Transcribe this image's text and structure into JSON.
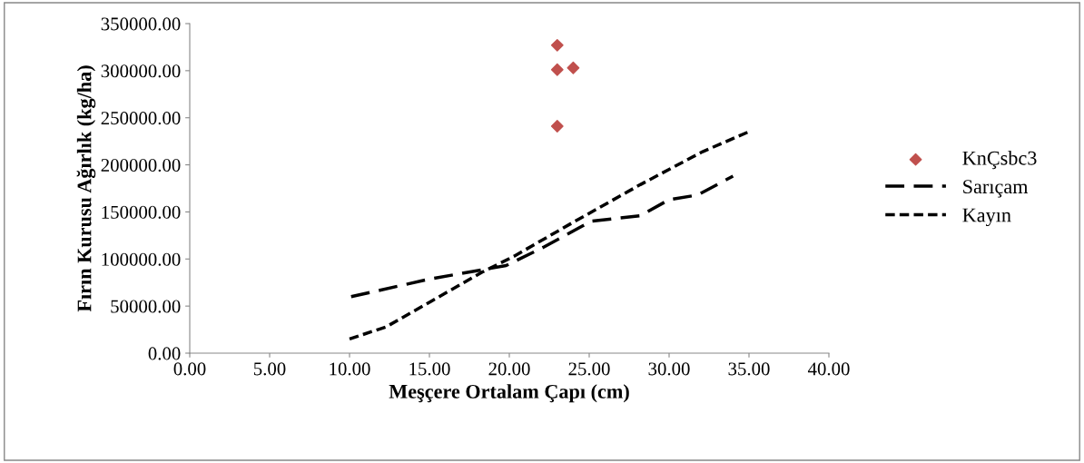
{
  "chart_data": {
    "type": "scatter",
    "xlabel": "Meşçere Ortalam Çapı (cm)",
    "ylabel": "Fırın Kurusu Ağırlık (kg/ha)",
    "xlim": [
      0,
      40
    ],
    "xticks": [
      {
        "value": 0,
        "label": "0.00"
      },
      {
        "value": 5,
        "label": "5.00"
      },
      {
        "value": 10,
        "label": "10.00"
      },
      {
        "value": 15,
        "label": "15.00"
      },
      {
        "value": 20,
        "label": "20.00"
      },
      {
        "value": 25,
        "label": "25.00"
      },
      {
        "value": 30,
        "label": "30.00"
      },
      {
        "value": 35,
        "label": "35.00"
      },
      {
        "value": 40,
        "label": "40.00"
      }
    ],
    "ylim": [
      0,
      350000
    ],
    "yticks": [
      {
        "value": 0,
        "label": "0.00"
      },
      {
        "value": 50000,
        "label": "50000.00"
      },
      {
        "value": 100000,
        "label": "100000.00"
      },
      {
        "value": 150000,
        "label": "150000.00"
      },
      {
        "value": 200000,
        "label": "200000.00"
      },
      {
        "value": 250000,
        "label": "250000.00"
      },
      {
        "value": 300000,
        "label": "300000.00"
      },
      {
        "value": 350000,
        "label": "350000.00"
      }
    ],
    "grid": false,
    "legend": "right",
    "series": [
      {
        "name": "KnÇsbc3",
        "marker": "diamond",
        "color": "#c0504d",
        "x": [
          23,
          23,
          24,
          23
        ],
        "values": [
          327000,
          301000,
          303000,
          241000
        ]
      },
      {
        "name": "Sarıçam",
        "type": "line",
        "line_style": "dashed",
        "marker": "none",
        "color": "#000000",
        "x": [
          10.1,
          15.1,
          19.8,
          22.2,
          25.1,
          28.2,
          30,
          31.8,
          34
        ],
        "values": [
          60000,
          79000,
          93000,
          113000,
          140000,
          146000,
          163000,
          168000,
          188000
        ]
      },
      {
        "name": "Kayın",
        "type": "line",
        "line_style": "dotted",
        "marker": "none",
        "color": "#000000",
        "x": [
          10,
          12.3,
          15.1,
          18.3,
          20.3,
          24,
          28.2,
          32.1,
          35.1
        ],
        "values": [
          15000,
          28000,
          55000,
          86000,
          103000,
          139000,
          179000,
          214000,
          236000
        ]
      }
    ]
  }
}
